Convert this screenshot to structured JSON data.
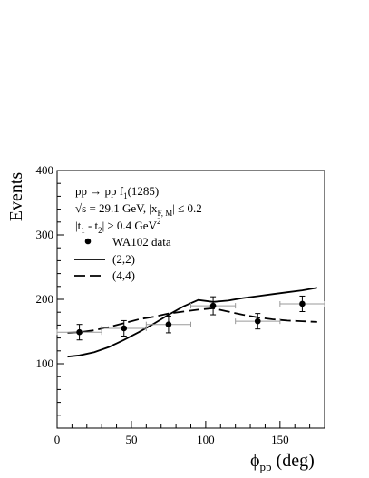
{
  "chart_data": {
    "type": "scatter",
    "title": "",
    "xlabel": "ϕ",
    "xlabel_sub": "pp",
    "xlabel_unit": " (deg)",
    "ylabel": "Events",
    "xlim": [
      0,
      180
    ],
    "ylim": [
      0,
      400
    ],
    "x_ticks": [
      0,
      50,
      100,
      150
    ],
    "y_ticks": [
      100,
      200,
      300,
      400
    ],
    "grid": false,
    "annotations": {
      "reaction": "pp → pp f",
      "reaction_sub": "1",
      "reaction_tail": "(1285)",
      "energy": "√s = 29.1 GeV,  |x",
      "energy_sub": "F, M",
      "energy_tail": "| ≤ 0.2",
      "t_cut_pre": "|t",
      "t_cut_sub1": "1",
      "t_cut_mid": " - t",
      "t_cut_sub2": "2",
      "t_cut_tail": "| ≥ 0.4 GeV",
      "t_cut_sup": "2"
    },
    "legend": {
      "placement": "top-left",
      "entries": [
        {
          "label": "WA102 data",
          "style": "marker"
        },
        {
          "label": "(2,2)",
          "style": "solid"
        },
        {
          "label": "(4,4)",
          "style": "dashed"
        }
      ]
    },
    "series": [
      {
        "name": "WA102 data",
        "kind": "points",
        "x": [
          15,
          45,
          75,
          105,
          135,
          165
        ],
        "y": [
          149,
          155,
          161,
          190,
          166,
          193
        ],
        "x_err": [
          15,
          15,
          15,
          15,
          15,
          15
        ],
        "y_err": [
          12,
          12,
          13,
          14,
          12,
          12
        ]
      },
      {
        "name": "(2,2)",
        "kind": "solid",
        "x": [
          7,
          15,
          25,
          35,
          45,
          55,
          65,
          75,
          85,
          95,
          105,
          115,
          125,
          135,
          145,
          155,
          165,
          175
        ],
        "y": [
          111,
          113,
          118,
          126,
          137,
          149,
          162,
          176,
          189,
          199,
          196,
          198,
          202,
          205,
          208,
          211,
          214,
          218
        ]
      },
      {
        "name": "(4,4)",
        "kind": "dashed",
        "x": [
          7,
          15,
          25,
          35,
          45,
          55,
          65,
          75,
          85,
          95,
          105,
          115,
          125,
          135,
          145,
          155,
          165,
          175
        ],
        "y": [
          148,
          149,
          152,
          157,
          163,
          169,
          173,
          178,
          181,
          184,
          186,
          181,
          176,
          172,
          169,
          167,
          166,
          165
        ]
      }
    ]
  }
}
